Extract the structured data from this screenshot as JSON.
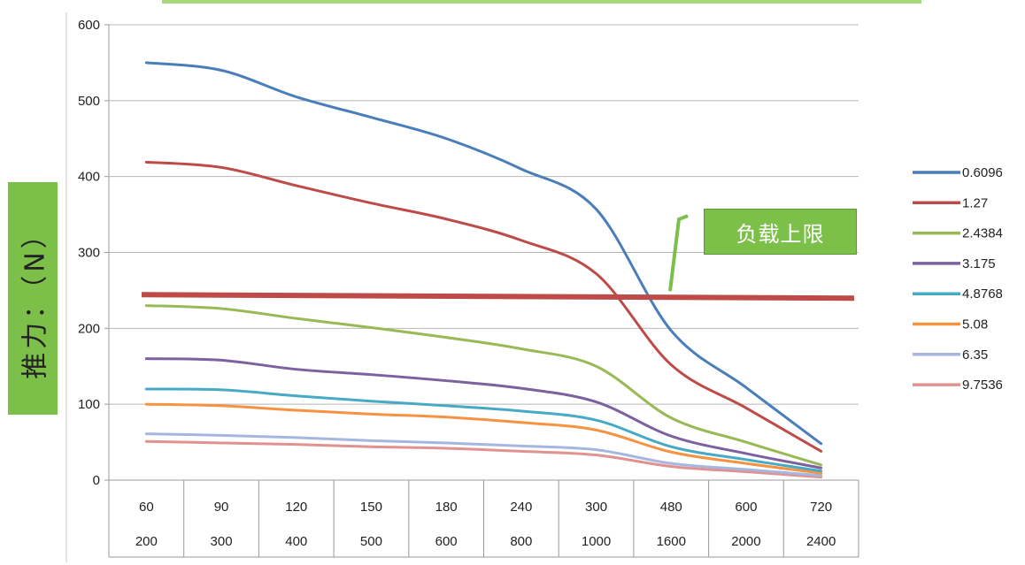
{
  "chart_data": {
    "type": "line",
    "ylabel": "推力：（N）",
    "ylim": [
      0,
      600
    ],
    "yticks": [
      0,
      100,
      200,
      300,
      400,
      500,
      600
    ],
    "categories_row1": [
      "60",
      "90",
      "120",
      "150",
      "180",
      "240",
      "300",
      "480",
      "600",
      "720"
    ],
    "categories_row2": [
      "200",
      "300",
      "400",
      "500",
      "600",
      "800",
      "1000",
      "1600",
      "2000",
      "2400"
    ],
    "series": [
      {
        "name": "0.6096",
        "color": "#4a7ebb",
        "values": [
          550,
          540,
          505,
          478,
          450,
          410,
          357,
          197,
          122,
          48
        ]
      },
      {
        "name": "1.27",
        "color": "#be4b48",
        "values": [
          419,
          412,
          388,
          365,
          344,
          316,
          272,
          152,
          95,
          38
        ]
      },
      {
        "name": "2.4384",
        "color": "#98b954",
        "values": [
          230,
          226,
          213,
          201,
          188,
          173,
          150,
          82,
          50,
          20
        ]
      },
      {
        "name": "3.175",
        "color": "#7d60a0",
        "values": [
          160,
          158,
          146,
          139,
          131,
          121,
          103,
          58,
          35,
          16
        ]
      },
      {
        "name": "4.8768",
        "color": "#46aac5",
        "values": [
          120,
          119,
          111,
          104,
          98,
          91,
          79,
          44,
          27,
          12
        ]
      },
      {
        "name": "5.08",
        "color": "#f69240",
        "values": [
          100,
          98,
          92,
          87,
          83,
          76,
          66,
          37,
          22,
          9
        ]
      },
      {
        "name": "6.35",
        "color": "#a5b6e0",
        "values": [
          61,
          59,
          56,
          52,
          49,
          45,
          40,
          22,
          14,
          6
        ]
      },
      {
        "name": "9.7536",
        "color": "#e0928f",
        "values": [
          51,
          49,
          47,
          44,
          42,
          38,
          33,
          18,
          11,
          4
        ]
      }
    ],
    "limit_line": {
      "value": 242,
      "color": "#be4b48",
      "label": "负载上限"
    },
    "grid": true,
    "legend": "right"
  }
}
